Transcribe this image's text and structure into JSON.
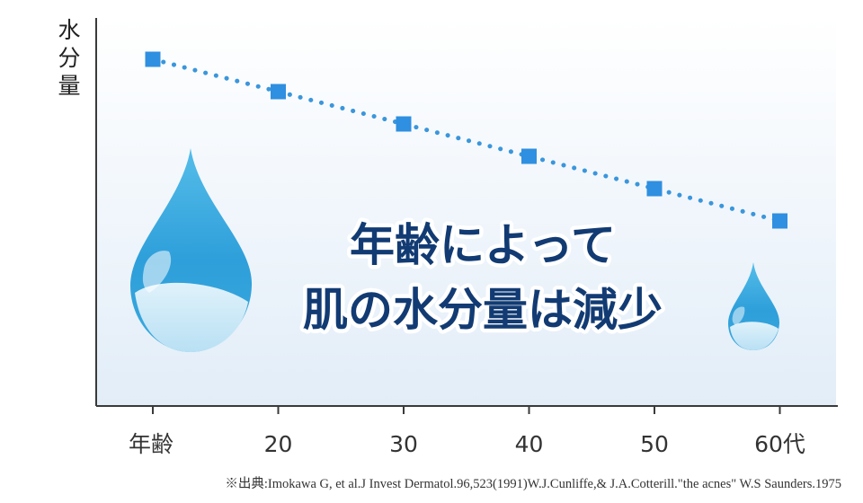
{
  "chart_data": {
    "type": "line",
    "ylabel": "水分量",
    "categories": [
      "年齢",
      "20",
      "30",
      "40",
      "50",
      "60代"
    ],
    "x": [
      10,
      20,
      30,
      40,
      50,
      60
    ],
    "values": [
      100,
      92,
      84,
      76,
      68,
      60
    ],
    "ylim": [
      0,
      110
    ],
    "headline_lines": [
      "年齢によって",
      "肌の水分量は減少"
    ],
    "grid": false,
    "legend": "none"
  },
  "colors": {
    "marker": "#2f8fe0",
    "line": "#3a96dc",
    "axis": "#3a3a3a",
    "plot_bg_top": "#ffffff",
    "plot_bg_bottom": "#e3eef9",
    "headline": "#123b73",
    "drop_dark": "#2a9ed8",
    "drop_light": "#cde9f7"
  },
  "source_note": "※出典:Imokawa G, et al.J Invest Dermatol.96,523(1991)W.J.Cunliffe,& J.A.Cotterill.\"the acnes\" W.S Saunders.1975"
}
